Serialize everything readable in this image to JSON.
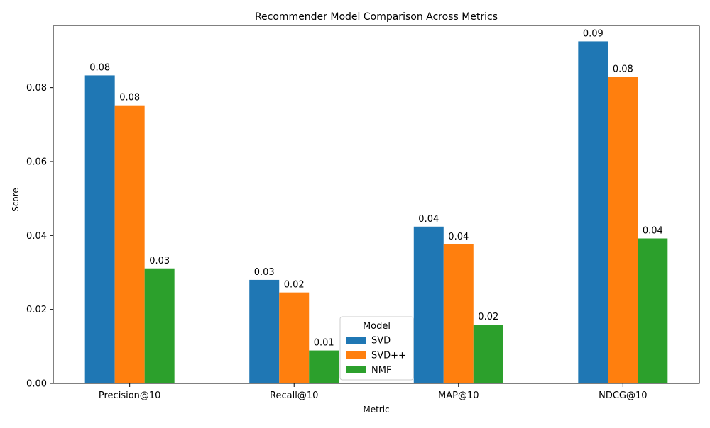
{
  "chart_data": {
    "type": "bar",
    "title": "Recommender Model Comparison Across Metrics",
    "xlabel": "Metric",
    "ylabel": "Score",
    "categories": [
      "Precision@10",
      "Recall@10",
      "MAP@10",
      "NDCG@10"
    ],
    "ylim": [
      0,
      0.0968
    ],
    "yticks": [
      "0.00",
      "0.02",
      "0.04",
      "0.06",
      "0.08"
    ],
    "ytick_values": [
      0.0,
      0.02,
      0.04,
      0.06,
      0.08
    ],
    "grid": false,
    "series": [
      {
        "name": "SVD",
        "color": "#1f77b4",
        "values": [
          0.0833,
          0.028,
          0.0424,
          0.0925
        ],
        "labels": [
          "0.08",
          "0.03",
          "0.04",
          "0.09"
        ]
      },
      {
        "name": "SVD++",
        "color": "#ff7f0e",
        "values": [
          0.0752,
          0.0246,
          0.0376,
          0.0829
        ],
        "labels": [
          "0.08",
          "0.02",
          "0.04",
          "0.08"
        ]
      },
      {
        "name": "NMF",
        "color": "#2ca02c",
        "values": [
          0.0311,
          0.0089,
          0.0159,
          0.0392
        ],
        "labels": [
          "0.03",
          "0.01",
          "0.02",
          "0.04"
        ]
      }
    ],
    "legend": {
      "title": "Model",
      "placement": "bottom-center"
    }
  }
}
